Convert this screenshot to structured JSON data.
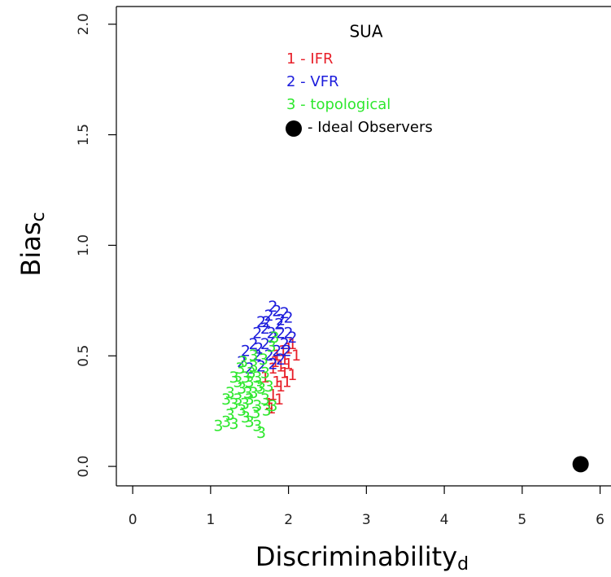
{
  "chart_data": {
    "type": "scatter",
    "title": "SUA",
    "xlabel": "Discriminability",
    "xlabel_sub": "d",
    "ylabel": "Bias",
    "ylabel_sub": "c",
    "xlim": [
      -0.21,
      6.14
    ],
    "ylim": [
      -0.088,
      2.08
    ],
    "xticks": [
      0,
      1,
      2,
      3,
      4,
      5,
      6
    ],
    "yticks": [
      {
        "value": 0,
        "label": "0.0"
      },
      0.5,
      {
        "value": 1,
        "label": "1.0"
      },
      1.5,
      {
        "value": 2,
        "label": "2.0"
      }
    ],
    "series": [
      {
        "name": "1 - IFR",
        "marker": "1",
        "color": "#e8202a",
        "x": [
          2.05,
          1.95,
          2.0,
          1.9,
          1.85,
          1.95,
          2.0,
          1.8,
          1.75,
          1.9,
          1.85,
          2.05,
          1.93,
          1.8,
          1.7,
          1.88,
          1.78,
          1.98,
          2.1,
          1.83
        ],
        "y": [
          0.41,
          0.48,
          0.53,
          0.45,
          0.38,
          0.42,
          0.46,
          0.32,
          0.28,
          0.36,
          0.5,
          0.55,
          0.52,
          0.44,
          0.4,
          0.3,
          0.26,
          0.38,
          0.5,
          0.47
        ]
      },
      {
        "name": "2 - VFR",
        "marker": "2",
        "color": "#1c1cdc",
        "x": [
          1.8,
          1.75,
          1.85,
          1.9,
          1.95,
          2.0,
          1.65,
          1.6,
          1.7,
          1.8,
          1.9,
          2.0,
          2.05,
          1.55,
          1.7,
          1.85,
          1.95,
          1.45,
          1.6,
          1.75,
          1.9,
          1.4,
          1.65,
          1.8,
          1.5,
          1.72,
          1.88,
          1.78,
          1.62,
          1.98
        ],
        "y": [
          0.72,
          0.68,
          0.7,
          0.66,
          0.69,
          0.67,
          0.65,
          0.6,
          0.62,
          0.58,
          0.6,
          0.6,
          0.58,
          0.55,
          0.55,
          0.52,
          0.55,
          0.52,
          0.5,
          0.5,
          0.48,
          0.47,
          0.45,
          0.46,
          0.44,
          0.65,
          0.64,
          0.6,
          0.53,
          0.52
        ]
      },
      {
        "name": "3 - topological",
        "marker": "3",
        "color": "#2ee82e",
        "x": [
          1.1,
          1.2,
          1.25,
          1.3,
          1.3,
          1.35,
          1.4,
          1.4,
          1.45,
          1.5,
          1.5,
          1.55,
          1.55,
          1.6,
          1.6,
          1.65,
          1.7,
          1.7,
          1.45,
          1.5,
          1.6,
          1.65,
          1.35,
          1.25,
          1.3,
          1.42,
          1.55,
          1.68,
          1.75,
          1.8,
          1.82,
          1.78,
          1.58,
          1.48,
          1.52,
          1.38,
          1.62,
          1.72,
          1.2,
          1.44
        ],
        "y": [
          0.18,
          0.2,
          0.23,
          0.19,
          0.28,
          0.3,
          0.25,
          0.35,
          0.4,
          0.3,
          0.38,
          0.45,
          0.33,
          0.4,
          0.27,
          0.35,
          0.42,
          0.3,
          0.22,
          0.2,
          0.18,
          0.15,
          0.38,
          0.33,
          0.4,
          0.47,
          0.5,
          0.48,
          0.36,
          0.27,
          0.58,
          0.54,
          0.24,
          0.33,
          0.42,
          0.44,
          0.36,
          0.25,
          0.3,
          0.28
        ]
      },
      {
        "name": "- Ideal Observers",
        "color": "#000000",
        "x": [
          5.75
        ],
        "y": [
          0.01
        ]
      }
    ]
  }
}
